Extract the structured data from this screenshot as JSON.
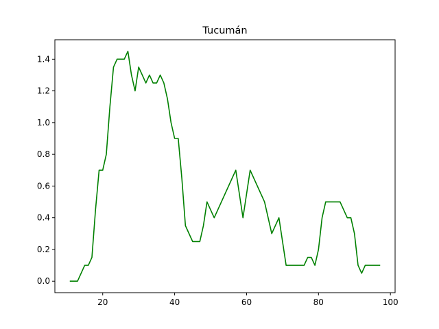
{
  "chart_data": {
    "type": "line",
    "title": "Tucumán",
    "xlabel": "",
    "ylabel": "",
    "xlim": [
      6.7,
      101.3
    ],
    "ylim": [
      -0.0725,
      1.5225
    ],
    "xticks": [
      20,
      40,
      60,
      80,
      100
    ],
    "yticks": [
      0.0,
      0.2,
      0.4,
      0.6,
      0.8,
      1.0,
      1.2,
      1.4
    ],
    "xtick_labels": [
      "20",
      "40",
      "60",
      "80",
      "100"
    ],
    "ytick_labels": [
      "0.0",
      "0.2",
      "0.4",
      "0.6",
      "0.8",
      "1.0",
      "1.2",
      "1.4"
    ],
    "grid": false,
    "series": [
      {
        "color": "#008000",
        "x": [
          11,
          13,
          15,
          16,
          17,
          18,
          19,
          20,
          21,
          22,
          23,
          24,
          25,
          26,
          27,
          28,
          29,
          30,
          31,
          32,
          33,
          34,
          35,
          36,
          37,
          38,
          39,
          40,
          41,
          42,
          43,
          45,
          47,
          48,
          49,
          51,
          57,
          59,
          61,
          65,
          67,
          69,
          71,
          73,
          76,
          77,
          78,
          79,
          80,
          81,
          82,
          84,
          86,
          88,
          89,
          90,
          91,
          92,
          93,
          95,
          97
        ],
        "y": [
          0.0,
          0.0,
          0.1,
          0.1,
          0.15,
          0.45,
          0.7,
          0.7,
          0.8,
          1.1,
          1.35,
          1.4,
          1.4,
          1.4,
          1.45,
          1.3,
          1.2,
          1.35,
          1.3,
          1.25,
          1.3,
          1.25,
          1.25,
          1.3,
          1.25,
          1.15,
          1.0,
          0.9,
          0.9,
          0.65,
          0.35,
          0.25,
          0.25,
          0.35,
          0.5,
          0.4,
          0.7,
          0.4,
          0.7,
          0.5,
          0.3,
          0.4,
          0.1,
          0.1,
          0.1,
          0.15,
          0.15,
          0.1,
          0.2,
          0.4,
          0.5,
          0.5,
          0.5,
          0.4,
          0.4,
          0.3,
          0.1,
          0.05,
          0.1,
          0.1,
          0.1
        ]
      }
    ]
  }
}
